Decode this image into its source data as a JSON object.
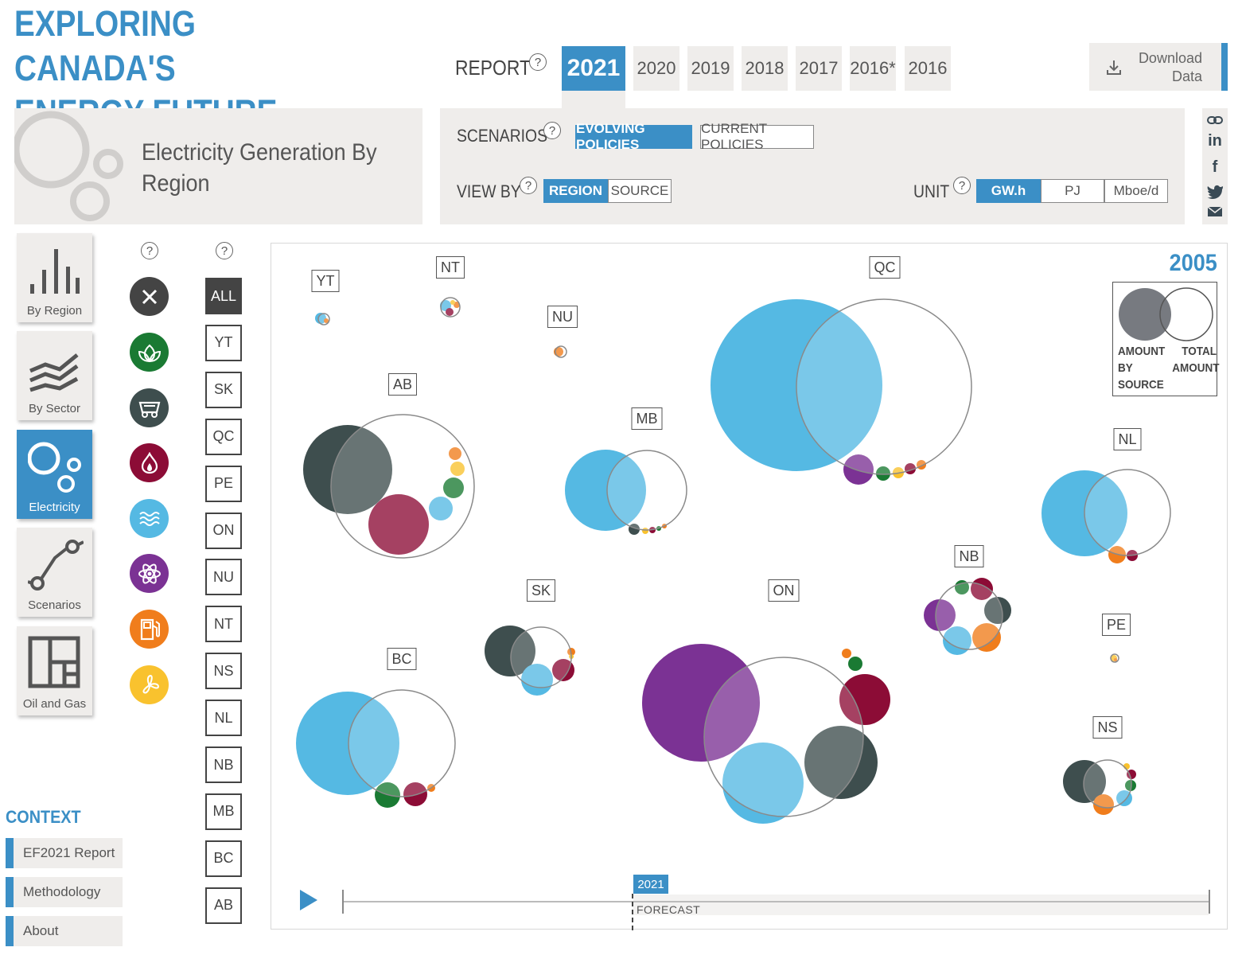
{
  "header": {
    "title_line1": "EXPLORING CANADA'S",
    "title_line2": "ENERGY FUTURE",
    "report_label": "REPORT",
    "years": [
      {
        "label": "2021",
        "active": true
      },
      {
        "label": "2020",
        "active": false
      },
      {
        "label": "2019",
        "active": false
      },
      {
        "label": "2018",
        "active": false
      },
      {
        "label": "2017",
        "active": false
      },
      {
        "label": "2016*",
        "active": false
      },
      {
        "label": "2016",
        "active": false
      }
    ],
    "download_line1": "Download",
    "download_line2": "Data",
    "help_glyph": "?"
  },
  "page": {
    "title_line1": "Electricity Generation By",
    "title_line2": "Region"
  },
  "controls": {
    "scenarios_label": "SCENARIOS",
    "scenario_options": [
      "EVOLVING POLICIES",
      "CURRENT POLICIES"
    ],
    "scenario_selected": "EVOLVING POLICIES",
    "viewby_label": "VIEW BY",
    "viewby_options": [
      "REGION",
      "SOURCE"
    ],
    "viewby_selected": "REGION",
    "unit_label": "UNIT",
    "unit_options": [
      "GW.h",
      "PJ",
      "Mboe/d"
    ],
    "unit_selected": "GW.h"
  },
  "share_icons": [
    "link-icon",
    "linkedin-icon",
    "facebook-icon",
    "twitter-icon",
    "email-icon"
  ],
  "share_glyphs": {
    "linkedin": "in",
    "facebook": "f"
  },
  "nav": [
    {
      "label": "By Region",
      "icon": "bar-chart-icon",
      "active": false
    },
    {
      "label": "By Sector",
      "icon": "stacked-area-icon",
      "active": false
    },
    {
      "label": "Electricity",
      "icon": "bubbles-icon",
      "active": true
    },
    {
      "label": "Scenarios",
      "icon": "scenario-path-icon",
      "active": false
    },
    {
      "label": "Oil and Gas",
      "icon": "grid-layout-icon",
      "active": false
    }
  ],
  "context": {
    "title": "CONTEXT",
    "items": [
      "EF2021 Report",
      "Methodology",
      "About"
    ]
  },
  "source_filters": [
    {
      "name": "clear-all-icon",
      "color": "#444444"
    },
    {
      "name": "biomass-icon",
      "color": "#1a7a33"
    },
    {
      "name": "coal-icon",
      "color": "#3e4e4e"
    },
    {
      "name": "natural-gas-icon",
      "color": "#8c0c36"
    },
    {
      "name": "hydro-icon",
      "color": "#55b9e3"
    },
    {
      "name": "nuclear-icon",
      "color": "#7b3294"
    },
    {
      "name": "oil-icon",
      "color": "#f07d1c"
    },
    {
      "name": "wind-solar-icon",
      "color": "#f9c22e"
    }
  ],
  "region_filters": [
    "ALL",
    "YT",
    "SK",
    "QC",
    "PE",
    "ON",
    "NU",
    "NT",
    "NS",
    "NL",
    "NB",
    "MB",
    "BC",
    "AB"
  ],
  "region_selected": "ALL",
  "chart": {
    "year": "2005",
    "legend_amount": "AMOUNT BY SOURCE",
    "legend_amount_lines": [
      "AMOUNT",
      "BY",
      "SOURCE"
    ],
    "legend_total_lines": [
      "TOTAL",
      "AMOUNT"
    ],
    "timeline_year": "2021",
    "forecast_label": "FORECAST"
  },
  "colors": {
    "accent": "#3b8fc6",
    "hydro": "#55b9e3",
    "coal": "#3e4e4e",
    "gas": "#8c0c36",
    "nuclear": "#7b3294",
    "biomass": "#1a7a33",
    "oil": "#f07d1c",
    "solar": "#f9c22e"
  },
  "chart_data": {
    "type": "bubble",
    "year": "2005",
    "regions": [
      "YT",
      "NT",
      "NU",
      "QC",
      "AB",
      "MB",
      "NL",
      "SK",
      "ON",
      "NB",
      "PE",
      "BC",
      "NS"
    ],
    "sources": [
      "hydro",
      "coal",
      "gas",
      "nuclear",
      "biomass",
      "oil",
      "solar"
    ]
  }
}
